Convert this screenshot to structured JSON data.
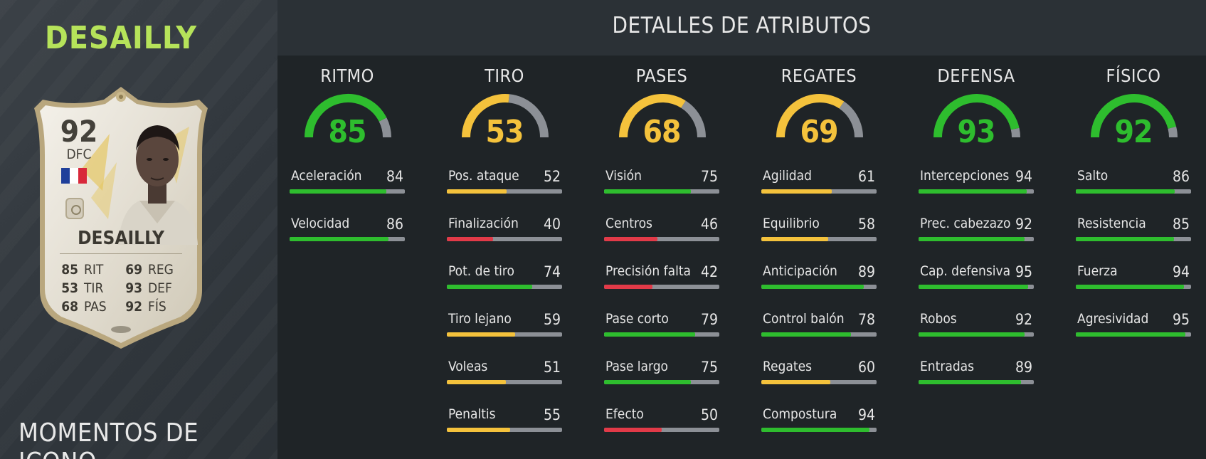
{
  "player": {
    "name": "DESAILLY",
    "version": "MOMENTOS DE ICONO",
    "card": {
      "rating": "92",
      "position": "DFC",
      "name": "DESAILLY",
      "stats": [
        {
          "left_value": "85",
          "left_label": "RIT",
          "right_value": "69",
          "right_label": "REG"
        },
        {
          "left_value": "53",
          "left_label": "TIR",
          "right_value": "93",
          "right_label": "DEF"
        },
        {
          "left_value": "68",
          "left_label": "PAS",
          "right_value": "92",
          "right_label": "FÍS"
        }
      ]
    }
  },
  "panel": {
    "title": "DETALLES DE ATRIBUTOS",
    "colors": {
      "green": "#2ebd2e",
      "yellow": "#f4c23c",
      "red": "#e23a48",
      "track": "#8c9096"
    },
    "categories": [
      {
        "name": "RITMO",
        "value": 85,
        "value_text": "85",
        "color": "#2ebd2e",
        "attributes": [
          {
            "label": "Aceleración",
            "value": 84,
            "value_text": "84",
            "color": "#2ebd2e"
          },
          {
            "label": "Velocidad",
            "value": 86,
            "value_text": "86",
            "color": "#2ebd2e"
          }
        ]
      },
      {
        "name": "TIRO",
        "value": 53,
        "value_text": "53",
        "color": "#f4c23c",
        "attributes": [
          {
            "label": "Pos. ataque",
            "value": 52,
            "value_text": "52",
            "color": "#f4c23c"
          },
          {
            "label": "Finalización",
            "value": 40,
            "value_text": "40",
            "color": "#e23a48"
          },
          {
            "label": "Pot. de tiro",
            "value": 74,
            "value_text": "74",
            "color": "#2ebd2e"
          },
          {
            "label": "Tiro lejano",
            "value": 59,
            "value_text": "59",
            "color": "#f4c23c"
          },
          {
            "label": "Voleas",
            "value": 51,
            "value_text": "51",
            "color": "#f4c23c"
          },
          {
            "label": "Penaltis",
            "value": 55,
            "value_text": "55",
            "color": "#f4c23c"
          }
        ]
      },
      {
        "name": "PASES",
        "value": 68,
        "value_text": "68",
        "color": "#f4c23c",
        "attributes": [
          {
            "label": "Visión",
            "value": 75,
            "value_text": "75",
            "color": "#2ebd2e"
          },
          {
            "label": "Centros",
            "value": 46,
            "value_text": "46",
            "color": "#e23a48"
          },
          {
            "label": "Precisión falta",
            "value": 42,
            "value_text": "42",
            "color": "#e23a48"
          },
          {
            "label": "Pase corto",
            "value": 79,
            "value_text": "79",
            "color": "#2ebd2e"
          },
          {
            "label": "Pase largo",
            "value": 75,
            "value_text": "75",
            "color": "#2ebd2e"
          },
          {
            "label": "Efecto",
            "value": 50,
            "value_text": "50",
            "color": "#e23a48"
          }
        ]
      },
      {
        "name": "REGATES",
        "value": 69,
        "value_text": "69",
        "color": "#f4c23c",
        "attributes": [
          {
            "label": "Agilidad",
            "value": 61,
            "value_text": "61",
            "color": "#f4c23c"
          },
          {
            "label": "Equilibrio",
            "value": 58,
            "value_text": "58",
            "color": "#f4c23c"
          },
          {
            "label": "Anticipación",
            "value": 89,
            "value_text": "89",
            "color": "#2ebd2e"
          },
          {
            "label": "Control balón",
            "value": 78,
            "value_text": "78",
            "color": "#2ebd2e"
          },
          {
            "label": "Regates",
            "value": 60,
            "value_text": "60",
            "color": "#f4c23c"
          },
          {
            "label": "Compostura",
            "value": 94,
            "value_text": "94",
            "color": "#2ebd2e"
          }
        ]
      },
      {
        "name": "DEFENSA",
        "value": 93,
        "value_text": "93",
        "color": "#2ebd2e",
        "attributes": [
          {
            "label": "Intercepciones",
            "value": 94,
            "value_text": "94",
            "color": "#2ebd2e"
          },
          {
            "label": "Prec. cabezazo",
            "value": 92,
            "value_text": "92",
            "color": "#2ebd2e"
          },
          {
            "label": "Cap. defensiva",
            "value": 95,
            "value_text": "95",
            "color": "#2ebd2e"
          },
          {
            "label": "Robos",
            "value": 92,
            "value_text": "92",
            "color": "#2ebd2e"
          },
          {
            "label": "Entradas",
            "value": 89,
            "value_text": "89",
            "color": "#2ebd2e"
          }
        ]
      },
      {
        "name": "FÍSICO",
        "value": 92,
        "value_text": "92",
        "color": "#2ebd2e",
        "attributes": [
          {
            "label": "Salto",
            "value": 86,
            "value_text": "86",
            "color": "#2ebd2e"
          },
          {
            "label": "Resistencia",
            "value": 85,
            "value_text": "85",
            "color": "#2ebd2e"
          },
          {
            "label": "Fuerza",
            "value": 94,
            "value_text": "94",
            "color": "#2ebd2e"
          },
          {
            "label": "Agresividad",
            "value": 95,
            "value_text": "95",
            "color": "#2ebd2e"
          }
        ]
      }
    ]
  }
}
